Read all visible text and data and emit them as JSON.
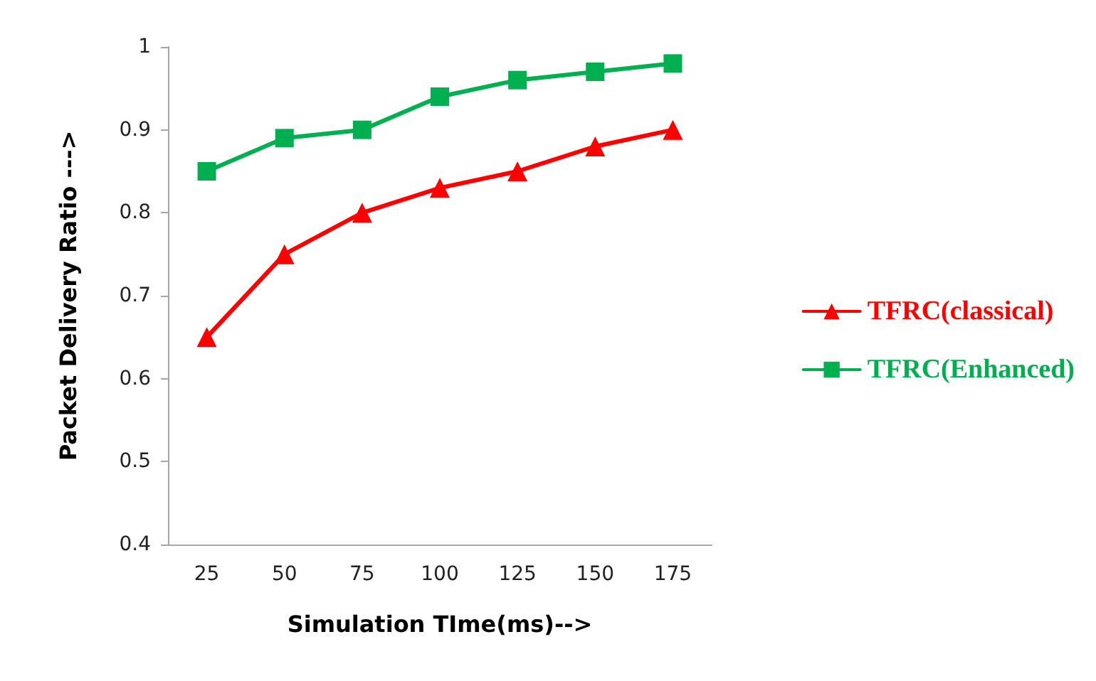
{
  "chart_data": {
    "type": "line",
    "xlabel": "Simulation TIme(ms)-->",
    "ylabel": "Packet Delivery Ratio --->",
    "categories": [
      "25",
      "50",
      "75",
      "100",
      "125",
      "150",
      "175"
    ],
    "series": [
      {
        "name": "TFRC(classical)",
        "color": "#ff0000",
        "marker": "triangle",
        "values": [
          0.65,
          0.75,
          0.8,
          0.83,
          0.85,
          0.88,
          0.9
        ]
      },
      {
        "name": "TFRC(Enhanced)",
        "color": "#00b050",
        "marker": "square",
        "values": [
          0.85,
          0.89,
          0.9,
          0.94,
          0.96,
          0.97,
          0.98
        ]
      }
    ],
    "ylim": [
      0.4,
      1
    ],
    "yticks": [
      0.4,
      0.5,
      0.6,
      0.7,
      0.8,
      0.9,
      1
    ],
    "grid": false,
    "legend": "right",
    "line_style": "solid"
  }
}
